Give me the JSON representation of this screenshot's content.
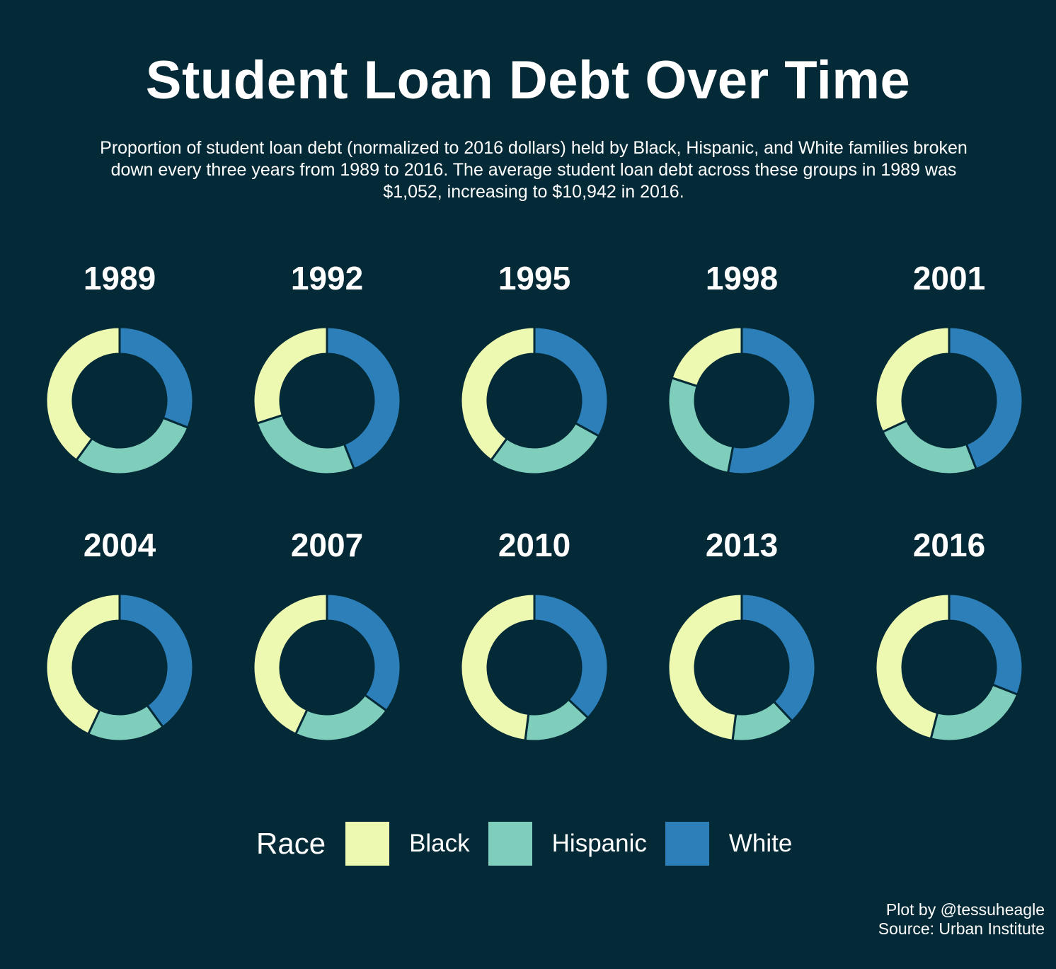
{
  "title": "Student Loan Debt Over Time",
  "subtitle": "Proportion of student loan debt (normalized to 2016 dollars) held by Black, Hispanic, and White families broken down every three years from 1989 to 2016. The average student loan debt across these groups in 1989 was $1,052, increasing to $10,942 in 2016.",
  "legend": {
    "title": "Race",
    "items": [
      {
        "label": "Black",
        "color": "#edf8b1"
      },
      {
        "label": "Hispanic",
        "color": "#7fcdbb"
      },
      {
        "label": "White",
        "color": "#2c7fb8"
      }
    ]
  },
  "caption": {
    "line1": "Plot by @tessuheagle",
    "line2": "Source: Urban Institute"
  },
  "chart_data": {
    "type": "pie",
    "style": "donut",
    "series_order": [
      "White",
      "Hispanic",
      "Black"
    ],
    "panels": [
      {
        "year": "1989",
        "values": {
          "White": 0.31,
          "Hispanic": 0.29,
          "Black": 0.4
        }
      },
      {
        "year": "1992",
        "values": {
          "White": 0.44,
          "Hispanic": 0.26,
          "Black": 0.3
        }
      },
      {
        "year": "1995",
        "values": {
          "White": 0.33,
          "Hispanic": 0.27,
          "Black": 0.4
        }
      },
      {
        "year": "1998",
        "values": {
          "White": 0.53,
          "Hispanic": 0.27,
          "Black": 0.2
        }
      },
      {
        "year": "2001",
        "values": {
          "White": 0.44,
          "Hispanic": 0.24,
          "Black": 0.32
        }
      },
      {
        "year": "2004",
        "values": {
          "White": 0.4,
          "Hispanic": 0.17,
          "Black": 0.43
        }
      },
      {
        "year": "2007",
        "values": {
          "White": 0.35,
          "Hispanic": 0.22,
          "Black": 0.43
        }
      },
      {
        "year": "2010",
        "values": {
          "White": 0.37,
          "Hispanic": 0.15,
          "Black": 0.48
        }
      },
      {
        "year": "2013",
        "values": {
          "White": 0.38,
          "Hispanic": 0.14,
          "Black": 0.48
        }
      },
      {
        "year": "2016",
        "values": {
          "White": 0.31,
          "Hispanic": 0.23,
          "Black": 0.46
        }
      }
    ]
  }
}
